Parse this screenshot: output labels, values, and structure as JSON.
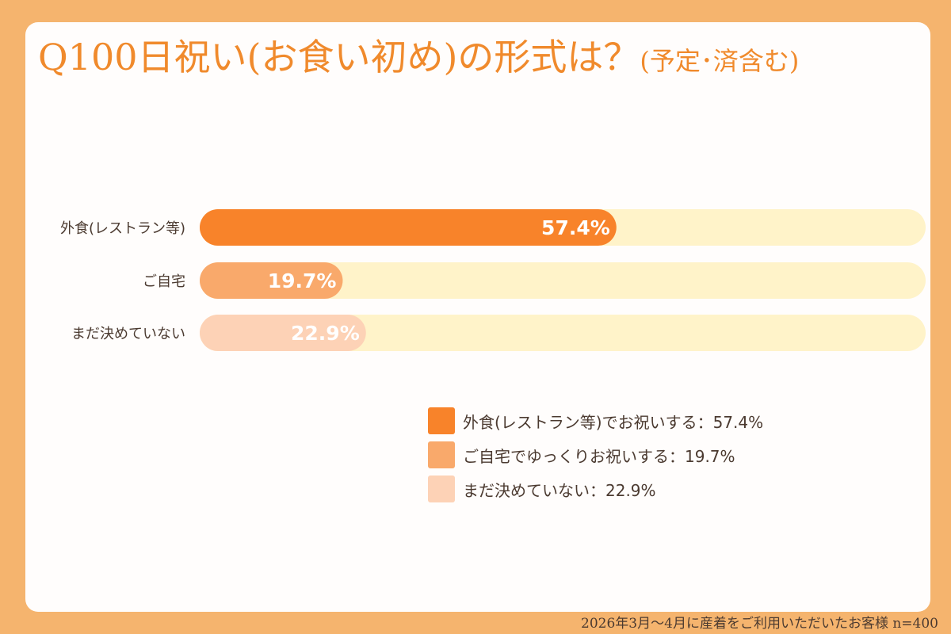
{
  "title": "Q100日祝い(お食い初め)の形式は？",
  "title_sub": "(予定･済含む)",
  "footer": "2026年3月～4月に産着をご利用いただいたお客様  n=400",
  "colors": {
    "background": "#f5b46e",
    "card": "#fffdfc",
    "title": "#f08a2c",
    "track": "#fff3c9",
    "text": "#4b3a30",
    "value_label": "#ffffff"
  },
  "legend": [
    {
      "label": "外食(レストラン等)でお祝いする：57.4%",
      "color": "#f8832a"
    },
    {
      "label": "ご自宅でゆっくりお祝いする：19.7%",
      "color": "#f9a96b"
    },
    {
      "label": "まだ決めていない：22.9%",
      "color": "#fdd2b6"
    }
  ],
  "chart_data": {
    "type": "bar",
    "orientation": "horizontal",
    "title": "Q100日祝い(お食い初め)の形式は？(予定･済含む)",
    "categories": [
      "外食(レストラン等)",
      "ご自宅",
      "まだ決めていない"
    ],
    "values": [
      57.4,
      19.7,
      22.9
    ],
    "value_labels": [
      "57.4%",
      "19.7%",
      "22.9%"
    ],
    "colors": [
      "#f8832a",
      "#f9a96b",
      "#fdd2b6"
    ],
    "xlim": [
      0,
      100
    ],
    "grid": false
  }
}
